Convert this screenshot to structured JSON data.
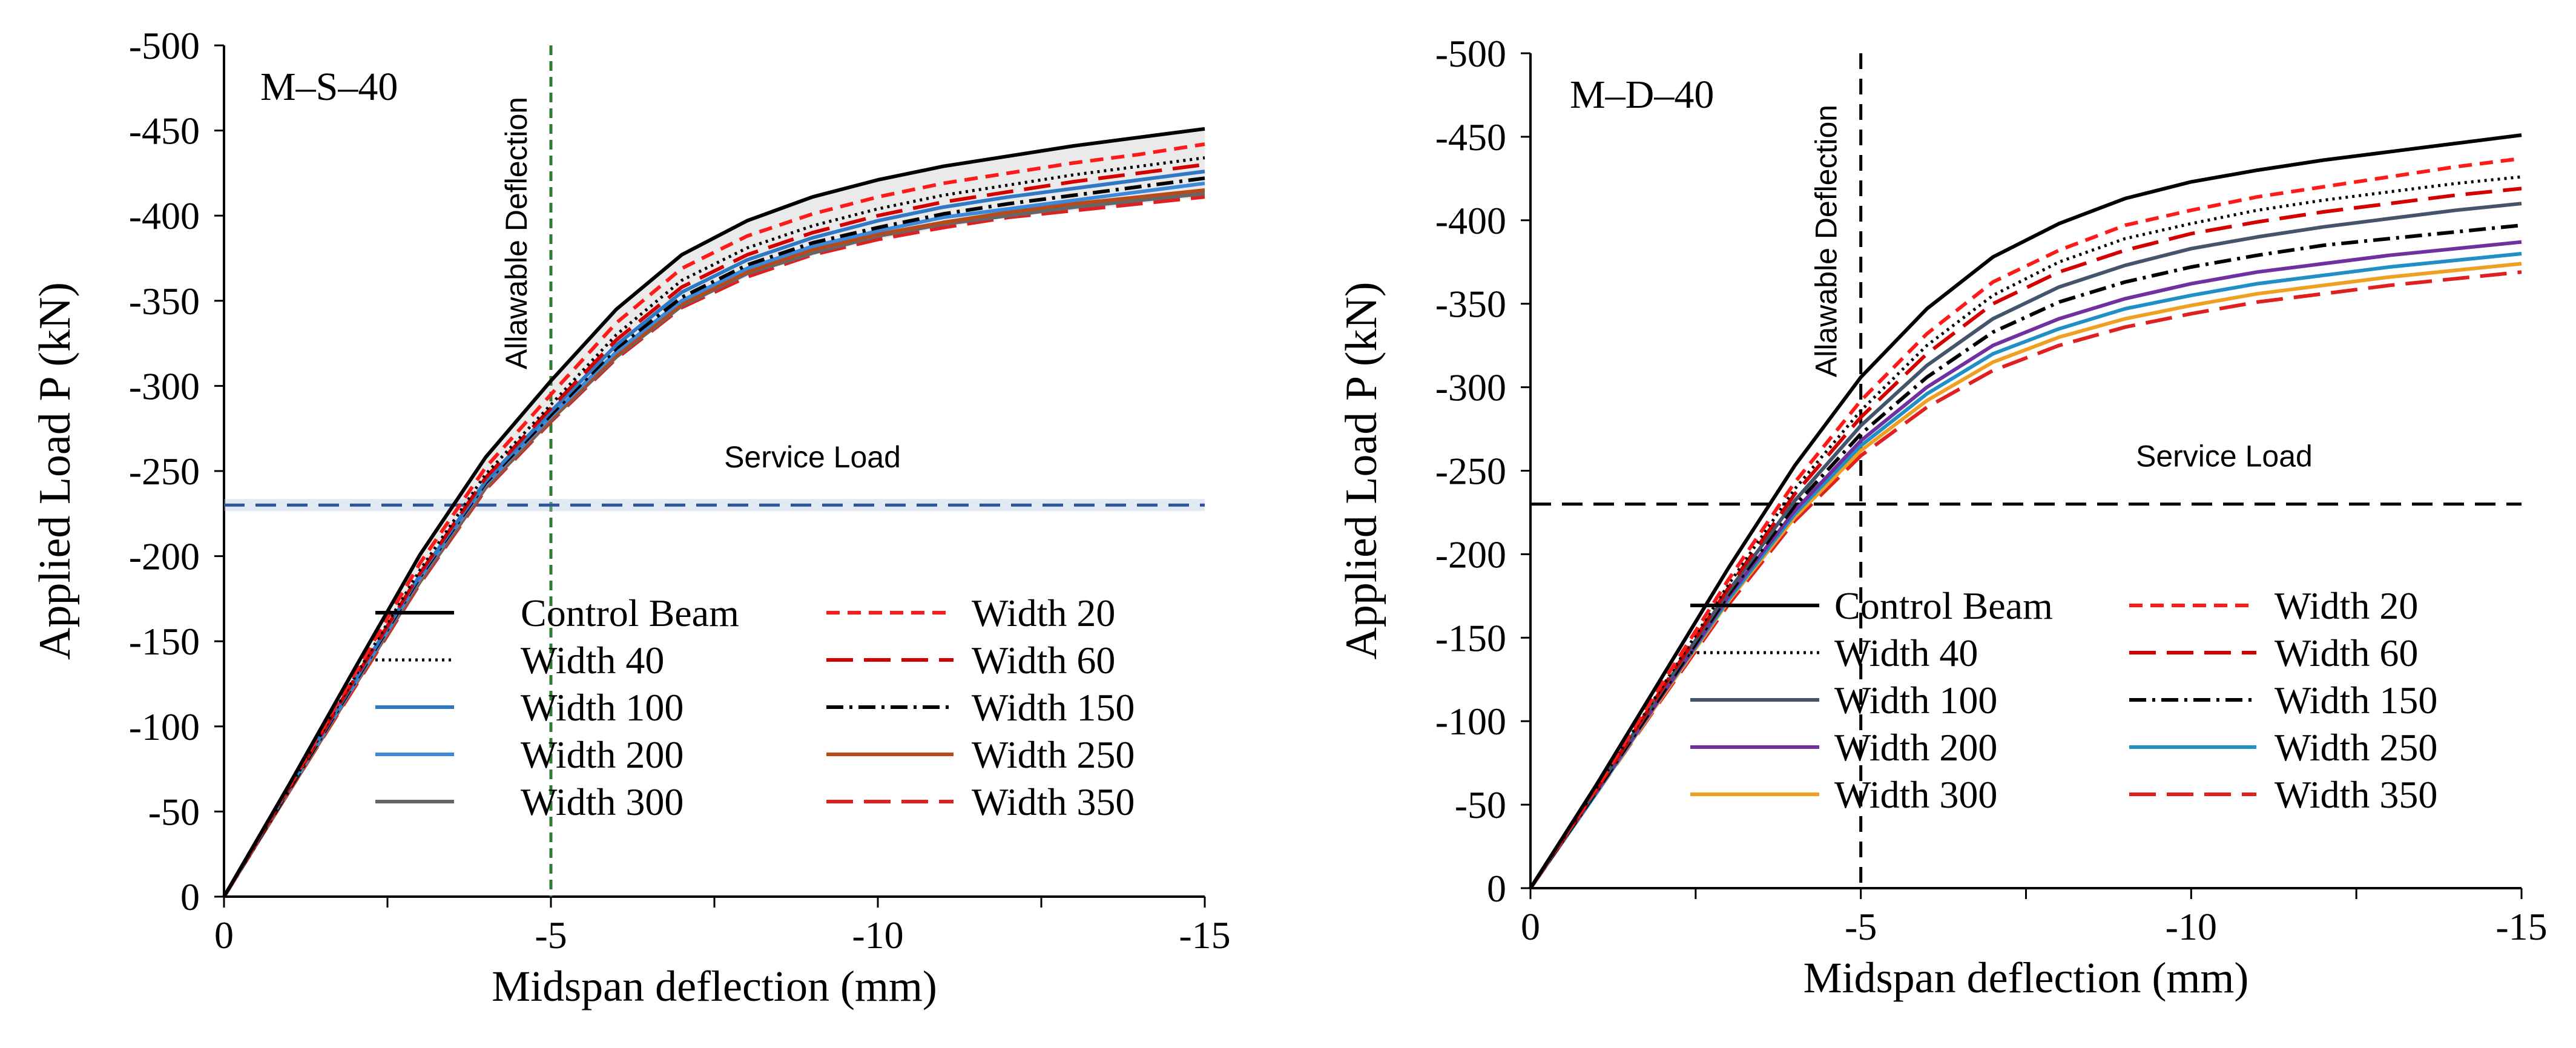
{
  "chart_data": [
    {
      "type": "line",
      "panel_label": "M–S–40",
      "xlabel": "Midspan deflection (mm)",
      "ylabel": "Applied Load P (kN)",
      "xlim": [
        0,
        -15
      ],
      "ylim": [
        0,
        -500
      ],
      "x_ticks": [
        0,
        -5,
        -10,
        -15
      ],
      "x_tick_labels": [
        "0",
        "-5",
        "-10",
        "-15"
      ],
      "y_ticks": [
        0,
        -50,
        -100,
        -150,
        -200,
        -250,
        -300,
        -350,
        -400,
        -450,
        -500
      ],
      "y_tick_labels": [
        "0",
        "-50",
        "-100",
        "-150",
        "-200",
        "-250",
        "-300",
        "-350",
        "-400",
        "-450",
        "-500"
      ],
      "grid": false,
      "legend_position": "lower-center",
      "legend_columns": 2,
      "x": [
        0,
        -1,
        -2,
        -3,
        -4,
        -5,
        -6,
        -7,
        -8,
        -9,
        -10,
        -11,
        -12,
        -13,
        -14,
        -15
      ],
      "annotations": [
        {
          "text": "Allawable Deflection",
          "type": "vertical-line",
          "x": -5,
          "color": "#2e7d32",
          "dash": "dotted"
        },
        {
          "text": "Service Load",
          "type": "horizontal-line",
          "y": -230,
          "color": "#2e5597",
          "dash": "dashed",
          "label_x": -9
        }
      ],
      "series": [
        {
          "name": "Control Beam",
          "color": "#000000",
          "dash": "solid",
          "values": [
            0,
            -66,
            -134,
            -201,
            -258,
            -303,
            -345,
            -377,
            -397,
            -411,
            -421,
            -429,
            -435,
            -441,
            -446,
            -451
          ]
        },
        {
          "name": "Width 20",
          "color": "#ff1a1a",
          "dash": "shortdash",
          "values": [
            0,
            -65,
            -131,
            -196,
            -252,
            -295,
            -337,
            -369,
            -388,
            -401,
            -411,
            -419,
            -425,
            -431,
            -436,
            -442
          ]
        },
        {
          "name": "Width 40",
          "color": "#000000",
          "dash": "dotted",
          "values": [
            0,
            -64,
            -129,
            -192,
            -248,
            -289,
            -330,
            -362,
            -381,
            -394,
            -404,
            -412,
            -418,
            -424,
            -429,
            -434
          ]
        },
        {
          "name": "Width 60",
          "color": "#d40000",
          "dash": "longdash",
          "values": [
            0,
            -64,
            -128,
            -190,
            -246,
            -287,
            -327,
            -358,
            -377,
            -390,
            -400,
            -408,
            -414,
            -420,
            -425,
            -430
          ]
        },
        {
          "name": "Width 100",
          "color": "#2f78c4",
          "dash": "solid",
          "values": [
            0,
            -64,
            -127,
            -189,
            -244,
            -285,
            -324,
            -355,
            -374,
            -387,
            -397,
            -405,
            -411,
            -416,
            -421,
            -426
          ]
        },
        {
          "name": "Width 150",
          "color": "#000000",
          "dash": "dashdot",
          "values": [
            0,
            -63,
            -126,
            -188,
            -243,
            -283,
            -322,
            -352,
            -371,
            -384,
            -393,
            -401,
            -407,
            -412,
            -417,
            -422
          ]
        },
        {
          "name": "Width 200",
          "color": "#3c88d9",
          "dash": "solid",
          "values": [
            0,
            -63,
            -125,
            -187,
            -242,
            -282,
            -320,
            -350,
            -369,
            -382,
            -391,
            -399,
            -404,
            -409,
            -414,
            -419
          ]
        },
        {
          "name": "Width 250",
          "color": "#b84a1a",
          "dash": "solid",
          "values": [
            0,
            -62,
            -124,
            -186,
            -241,
            -281,
            -318,
            -348,
            -367,
            -380,
            -389,
            -396,
            -402,
            -407,
            -411,
            -415
          ]
        },
        {
          "name": "Width 300",
          "color": "#666666",
          "dash": "solid",
          "values": [
            0,
            -62,
            -124,
            -185,
            -240,
            -280,
            -317,
            -347,
            -366,
            -378,
            -388,
            -395,
            -400,
            -405,
            -409,
            -413
          ]
        },
        {
          "name": "Width 350",
          "color": "#e02020",
          "dash": "longdash",
          "values": [
            0,
            -62,
            -123,
            -184,
            -239,
            -279,
            -316,
            -346,
            -364,
            -377,
            -386,
            -393,
            -399,
            -403,
            -407,
            -411
          ]
        }
      ]
    },
    {
      "type": "line",
      "panel_label": "M–D–40",
      "xlabel": "Midspan deflection (mm)",
      "ylabel": "Applied Load P (kN)",
      "xlim": [
        0,
        -15
      ],
      "ylim": [
        0,
        -500
      ],
      "x_ticks": [
        0,
        -5,
        -10,
        -15
      ],
      "x_tick_labels": [
        "0",
        "-5",
        "-10",
        "-15"
      ],
      "y_ticks": [
        0,
        -50,
        -100,
        -150,
        -200,
        -250,
        -300,
        -350,
        -400,
        -450,
        -500
      ],
      "y_tick_labels": [
        "0",
        "-50",
        "-100",
        "-150",
        "-200",
        "-250",
        "-300",
        "-350",
        "-400",
        "-450",
        "-500"
      ],
      "grid": false,
      "legend_position": "lower-center",
      "legend_columns": 2,
      "x": [
        0,
        -1,
        -2,
        -3,
        -4,
        -5,
        -6,
        -7,
        -8,
        -9,
        -10,
        -11,
        -12,
        -13,
        -14,
        -15
      ],
      "annotations": [
        {
          "text": "Allawable Deflection",
          "type": "vertical-line",
          "x": -5,
          "color": "#000000",
          "dash": "dashed"
        },
        {
          "text": "Service Load",
          "type": "horizontal-line",
          "y": -230,
          "color": "#000000",
          "dash": "dashed",
          "label_x": -10.5
        }
      ],
      "series": [
        {
          "name": "Control Beam",
          "color": "#000000",
          "dash": "solid",
          "values": [
            0,
            -62,
            -127,
            -192,
            -253,
            -306,
            -347,
            -378,
            -398,
            -413,
            -423,
            -430,
            -436,
            -441,
            -446,
            -451
          ]
        },
        {
          "name": "Width 20",
          "color": "#ff1a1a",
          "dash": "shortdash",
          "values": [
            0,
            -60,
            -123,
            -185,
            -243,
            -292,
            -332,
            -363,
            -382,
            -397,
            -406,
            -414,
            -420,
            -426,
            -432,
            -437
          ]
        },
        {
          "name": "Width 40",
          "color": "#000000",
          "dash": "dotted",
          "values": [
            0,
            -60,
            -121,
            -182,
            -239,
            -286,
            -325,
            -355,
            -375,
            -389,
            -398,
            -406,
            -412,
            -417,
            -422,
            -426
          ]
        },
        {
          "name": "Width 60",
          "color": "#d40000",
          "dash": "longdash",
          "values": [
            0,
            -59,
            -120,
            -180,
            -236,
            -282,
            -320,
            -350,
            -369,
            -382,
            -392,
            -399,
            -405,
            -410,
            -415,
            -419
          ]
        },
        {
          "name": "Width 100",
          "color": "#44546a",
          "dash": "solid",
          "values": [
            0,
            -59,
            -119,
            -178,
            -232,
            -277,
            -313,
            -341,
            -360,
            -373,
            -383,
            -390,
            -396,
            -401,
            -406,
            -410
          ]
        },
        {
          "name": "Width 150",
          "color": "#000000",
          "dash": "dashdot",
          "values": [
            0,
            -58,
            -117,
            -176,
            -229,
            -272,
            -306,
            -333,
            -351,
            -363,
            -372,
            -379,
            -385,
            -389,
            -393,
            -397
          ]
        },
        {
          "name": "Width 200",
          "color": "#7030a0",
          "dash": "solid",
          "values": [
            0,
            -58,
            -116,
            -175,
            -226,
            -268,
            -300,
            -325,
            -341,
            -353,
            -362,
            -369,
            -374,
            -379,
            -383,
            -387
          ]
        },
        {
          "name": "Width 250",
          "color": "#1f8fc6",
          "dash": "solid",
          "values": [
            0,
            -57,
            -116,
            -173,
            -224,
            -265,
            -296,
            -320,
            -335,
            -347,
            -355,
            -362,
            -367,
            -372,
            -376,
            -380
          ]
        },
        {
          "name": "Width 300",
          "color": "#f0a020",
          "dash": "solid",
          "values": [
            0,
            -57,
            -115,
            -172,
            -222,
            -262,
            -292,
            -315,
            -330,
            -341,
            -349,
            -356,
            -361,
            -366,
            -370,
            -374
          ]
        },
        {
          "name": "Width 350",
          "color": "#e02020",
          "dash": "longdash",
          "values": [
            0,
            -57,
            -114,
            -170,
            -220,
            -259,
            -288,
            -310,
            -325,
            -336,
            -344,
            -351,
            -356,
            -361,
            -365,
            -369
          ]
        }
      ]
    }
  ]
}
